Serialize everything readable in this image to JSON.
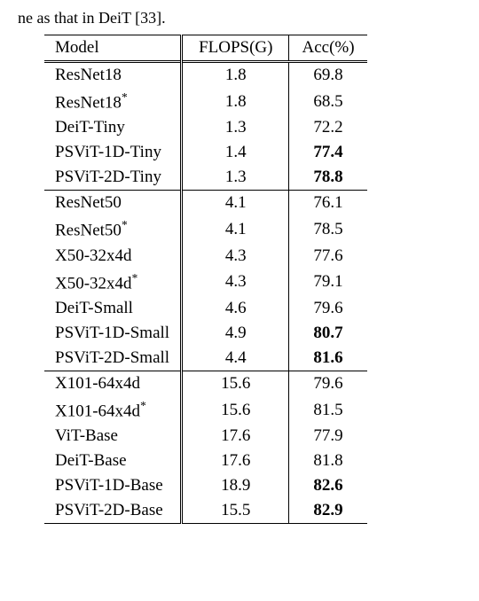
{
  "caption_fragment": "ne as that in DeiT [33].",
  "columns": [
    "Model",
    "FLOPS(G)",
    "Acc(%)"
  ],
  "groups": [
    {
      "rows": [
        {
          "model": "ResNet18",
          "star": false,
          "flops": "1.8",
          "acc": "69.8",
          "bold": false
        },
        {
          "model": "ResNet18",
          "star": true,
          "flops": "1.8",
          "acc": "68.5",
          "bold": false
        },
        {
          "model": "DeiT-Tiny",
          "star": false,
          "flops": "1.3",
          "acc": "72.2",
          "bold": false
        },
        {
          "model": "PSViT-1D-Tiny",
          "star": false,
          "flops": "1.4",
          "acc": "77.4",
          "bold": true
        },
        {
          "model": "PSViT-2D-Tiny",
          "star": false,
          "flops": "1.3",
          "acc": "78.8",
          "bold": true
        }
      ]
    },
    {
      "rows": [
        {
          "model": "ResNet50",
          "star": false,
          "flops": "4.1",
          "acc": "76.1",
          "bold": false
        },
        {
          "model": "ResNet50",
          "star": true,
          "flops": "4.1",
          "acc": "78.5",
          "bold": false
        },
        {
          "model": "X50-32x4d",
          "star": false,
          "flops": "4.3",
          "acc": "77.6",
          "bold": false
        },
        {
          "model": "X50-32x4d",
          "star": true,
          "flops": "4.3",
          "acc": "79.1",
          "bold": false
        },
        {
          "model": "DeiT-Small",
          "star": false,
          "flops": "4.6",
          "acc": "79.6",
          "bold": false
        },
        {
          "model": "PSViT-1D-Small",
          "star": false,
          "flops": "4.9",
          "acc": "80.7",
          "bold": true
        },
        {
          "model": "PSViT-2D-Small",
          "star": false,
          "flops": "4.4",
          "acc": "81.6",
          "bold": true
        }
      ]
    },
    {
      "rows": [
        {
          "model": "X101-64x4d",
          "star": false,
          "flops": "15.6",
          "acc": "79.6",
          "bold": false
        },
        {
          "model": "X101-64x4d",
          "star": true,
          "flops": "15.6",
          "acc": "81.5",
          "bold": false
        },
        {
          "model": "ViT-Base",
          "star": false,
          "flops": "17.6",
          "acc": "77.9",
          "bold": false
        },
        {
          "model": "DeiT-Base",
          "star": false,
          "flops": "17.6",
          "acc": "81.8",
          "bold": false
        },
        {
          "model": "PSViT-1D-Base",
          "star": false,
          "flops": "18.9",
          "acc": "82.6",
          "bold": true
        },
        {
          "model": "PSViT-2D-Base",
          "star": false,
          "flops": "15.5",
          "acc": "82.9",
          "bold": true
        }
      ]
    }
  ]
}
